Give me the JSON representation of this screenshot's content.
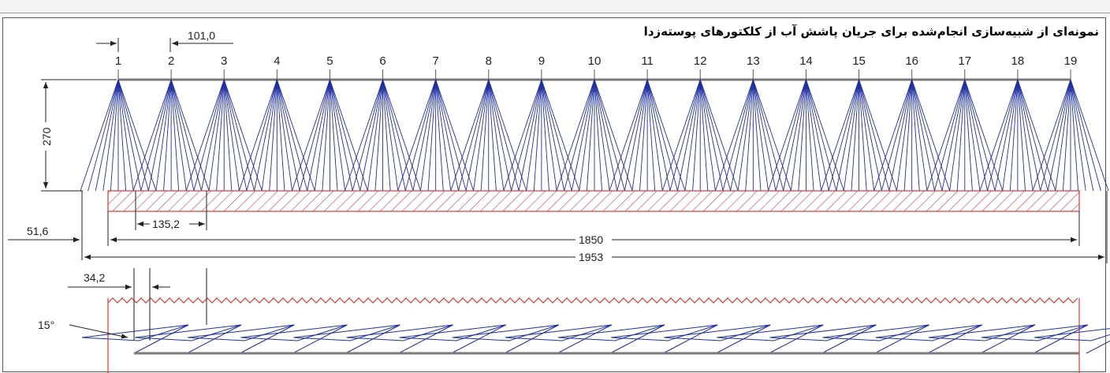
{
  "caption": "نمونه‌ای از شبیه‌سازی انجام‌شده برای جریان پاشش آب از کلکتورهای پوسته‌زدا",
  "nozzle_labels": [
    "1",
    "2",
    "3",
    "4",
    "5",
    "6",
    "7",
    "8",
    "9",
    "10",
    "11",
    "12",
    "13",
    "14",
    "15",
    "16",
    "17",
    "18",
    "19"
  ],
  "dimensions": {
    "spacing": "101,0",
    "height": "270",
    "overlap": "135,2",
    "offset": "51,6",
    "strip_width": "1850",
    "total_width": "1953",
    "gap": "34,2",
    "angle": "15°"
  },
  "colors": {
    "spray": "#1f2f9e",
    "strip": "#d23a3a",
    "header": "#7a7a7a",
    "dimension": "#222222"
  }
}
